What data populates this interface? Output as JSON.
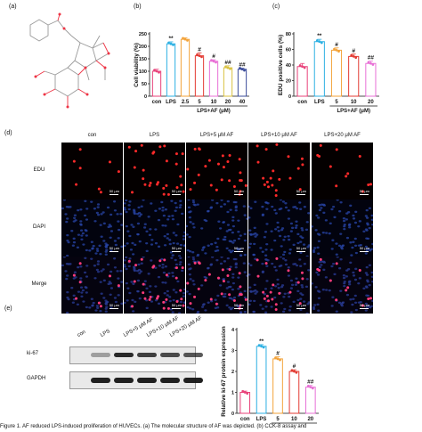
{
  "panels": {
    "a": "(a)",
    "b": "(b)",
    "c": "(c)",
    "d": "(d)",
    "e": "(e)"
  },
  "chart_data": [
    {
      "type": "bar",
      "panel": "(b)",
      "ylabel": "Cell viability (%)",
      "ylim": [
        0,
        250
      ],
      "yticks": [
        0,
        50,
        100,
        150,
        200,
        250
      ],
      "categories": [
        "con",
        "LPS",
        "2.5",
        "5",
        "10",
        "20",
        "40"
      ],
      "values": [
        100,
        210,
        228,
        162,
        140,
        114,
        108
      ],
      "errors": [
        8,
        8,
        6,
        12,
        6,
        8,
        4
      ],
      "colors": [
        "#e8427a",
        "#2cb0e3",
        "#f3a33a",
        "#e33b33",
        "#e870d6",
        "#d9c13f",
        "#3b4b9a"
      ],
      "annotations": [
        "",
        "**",
        "",
        "#",
        "#",
        "##",
        "##"
      ],
      "group_label": "LPS+AF (μM)"
    },
    {
      "type": "bar",
      "panel": "(c)",
      "ylabel": "EDU positive cells (%)",
      "ylim": [
        0,
        80
      ],
      "yticks": [
        0,
        20,
        40,
        60,
        80
      ],
      "categories": [
        "con",
        "LPS",
        "5",
        "10",
        "20"
      ],
      "values": [
        38,
        70,
        59,
        51,
        42
      ],
      "errors": [
        4,
        3,
        3,
        3,
        3
      ],
      "colors": [
        "#e8427a",
        "#2cb0e3",
        "#f3a33a",
        "#e33b33",
        "#e870d6"
      ],
      "annotations": [
        "",
        "**",
        "#",
        "#",
        "##"
      ],
      "group_label": "LPS+AF (μM)"
    },
    {
      "type": "bar",
      "panel": "(e)",
      "ylabel": "Relative ki-67 protein expression",
      "ylim": [
        0,
        4
      ],
      "yticks": [
        0,
        1,
        2,
        3,
        4
      ],
      "categories": [
        "con",
        "LPS",
        "5",
        "10",
        "20"
      ],
      "values": [
        1.0,
        3.2,
        2.6,
        2.0,
        1.25
      ],
      "errors": [
        0.06,
        0.08,
        0.1,
        0.08,
        0.08
      ],
      "colors": [
        "#e8427a",
        "#2cb0e3",
        "#f3a33a",
        "#e33b33",
        "#e870d6"
      ],
      "annotations": [
        "",
        "**",
        "#",
        "#",
        "##"
      ],
      "group_label": "LPS+AF (μM)"
    }
  ],
  "microscopy": {
    "columns": [
      "con",
      "LPS",
      "LPS+5 μM AF",
      "LPS+10 μM AF",
      "LPS+20 μM AF"
    ],
    "rows": [
      "EDU",
      "DAPI",
      "Merge"
    ],
    "scale": "50 μm"
  },
  "western": {
    "lanes": [
      "con",
      "LPS",
      "LPS+5 μM AF",
      "LPS+10 μM AF",
      "LPS+20 μM AF"
    ],
    "proteins": [
      "ki-67",
      "GAPDH"
    ]
  },
  "caption": "Figure 1. AF reduced LPS-induced proliferation of HUVECs. (a) The molecular structure of AF was depicted. (b) CCK-8 assay and"
}
